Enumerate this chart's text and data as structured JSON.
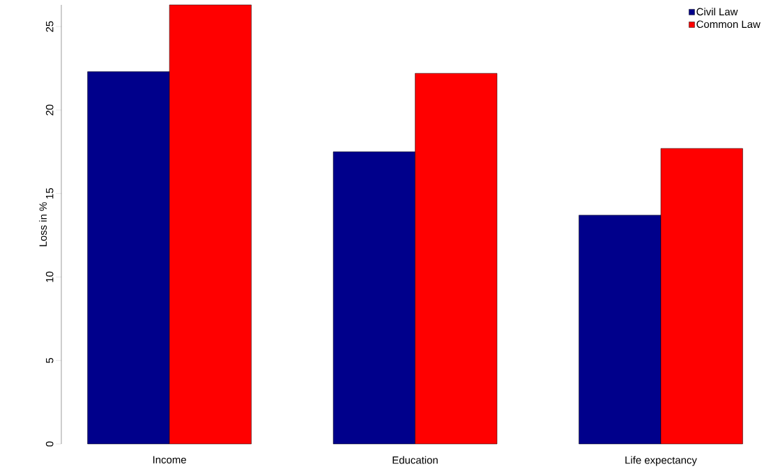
{
  "chart_data": {
    "type": "bar",
    "ylabel": "Loss in %",
    "categories": [
      "Income",
      "Education",
      "Life expectancy"
    ],
    "series": [
      {
        "name": "Civil Law",
        "color": "#00008b",
        "values": [
          22.3,
          17.5,
          13.7
        ]
      },
      {
        "name": "Common Law",
        "color": "#ff0000",
        "values": [
          26.3,
          22.2,
          17.7
        ]
      }
    ],
    "ylim": [
      0,
      26.3
    ],
    "yticks": [
      0,
      5,
      10,
      15,
      20,
      25
    ],
    "grid": false,
    "legend": "top right"
  }
}
